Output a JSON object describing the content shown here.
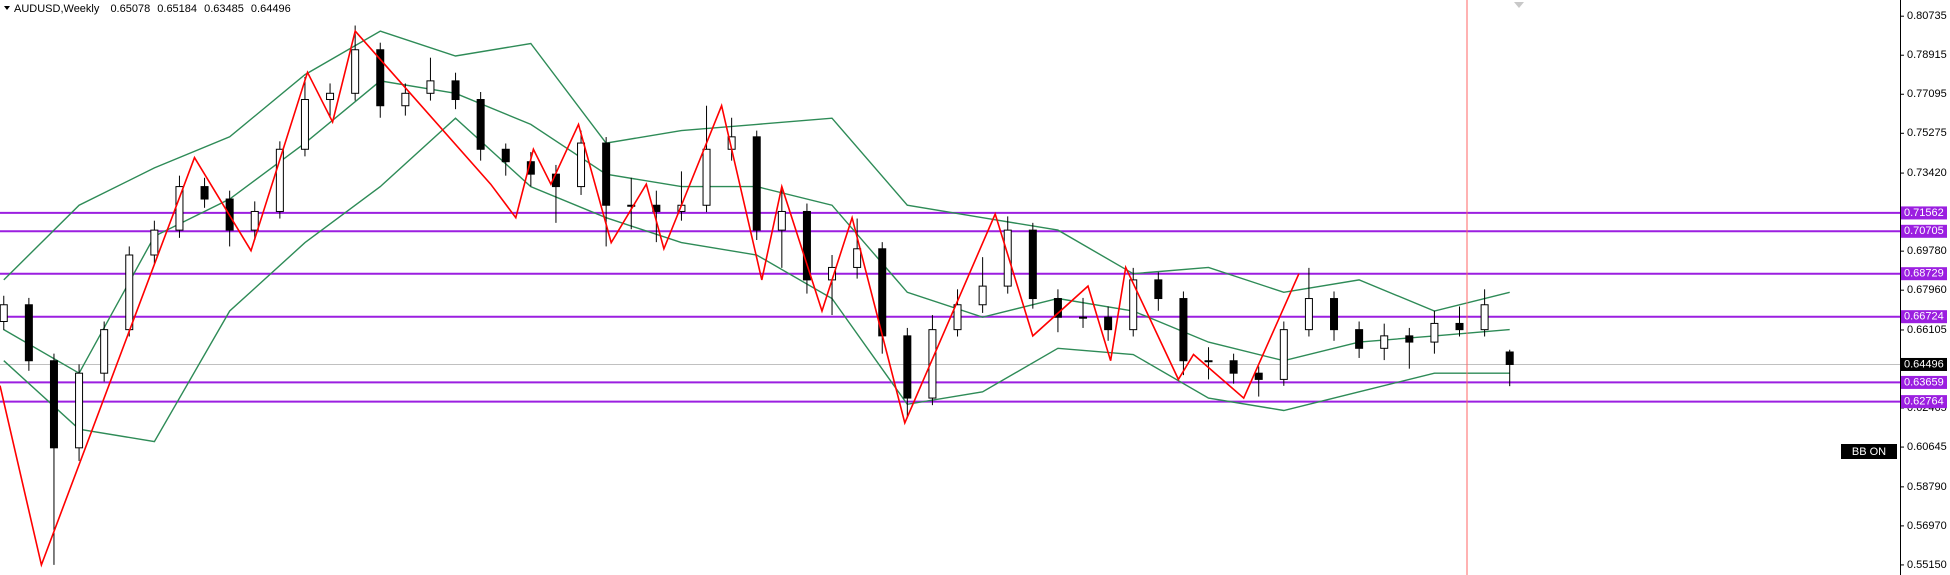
{
  "chart_data": {
    "type": "candlestick",
    "symbol": "AUDUSD,Weekly",
    "indicator_label": "BB ON",
    "xlim": [
      -0.15,
      75.55
    ],
    "ylim": [
      0.5468,
      0.8149
    ],
    "yticks": [
      0.80735,
      0.78915,
      0.77095,
      0.75275,
      {
        "value": 0.7342,
        "label": "0.73420"
      },
      {
        "value": 0.6978,
        "label": "0.69780"
      },
      {
        "value": 0.6796,
        "label": "0.67960"
      },
      0.66105,
      0.62465,
      0.60645,
      {
        "value": 0.5879,
        "label": "0.58790"
      },
      {
        "value": 0.5697,
        "label": "0.56970"
      },
      {
        "value": 0.5515,
        "label": "0.55150"
      }
    ],
    "x": [
      0,
      1,
      2,
      3,
      4,
      5,
      6,
      7,
      8,
      9,
      10,
      11,
      12,
      13,
      14,
      15,
      16,
      17,
      18,
      19,
      20,
      21,
      22,
      23,
      24,
      25,
      26,
      27,
      28,
      29,
      30,
      31,
      32,
      33,
      34,
      35,
      36,
      37,
      38,
      39,
      40,
      41,
      42,
      43,
      44,
      45,
      46,
      47,
      48,
      49,
      50,
      51,
      52,
      53,
      54,
      55,
      56,
      57,
      58,
      59,
      60
    ],
    "open": [
      0.665,
      0.6728,
      0.6467,
      0.6061,
      0.6409,
      0.6612,
      0.696,
      0.7076,
      0.7279,
      0.7221,
      0.7076,
      0.7163,
      0.7453,
      0.7685,
      0.7714,
      0.7917,
      0.7656,
      0.7714,
      0.7772,
      0.7685,
      0.7453,
      0.7395,
      0.7337,
      0.7279,
      0.7482,
      0.7192,
      0.7192,
      0.7163,
      0.7192,
      0.7453,
      0.7511,
      0.7076,
      0.7163,
      0.6844,
      0.6902,
      0.6989,
      0.6583,
      0.6293,
      0.6612,
      0.6728,
      0.6815,
      0.7076,
      0.6757,
      0.667,
      0.667,
      0.6612,
      0.6844,
      0.6757,
      0.6467,
      0.6467,
      0.6409,
      0.638,
      0.6612,
      0.6757,
      0.6612,
      0.6525,
      0.6583,
      0.6554,
      0.6641,
      0.6612,
      0.65078
    ],
    "high": [
      0.677,
      0.676,
      0.65,
      0.645,
      0.665,
      0.7,
      0.712,
      0.733,
      0.732,
      0.726,
      0.721,
      0.749,
      0.779,
      0.776,
      0.803,
      0.795,
      0.776,
      0.788,
      0.781,
      0.772,
      0.748,
      0.744,
      0.738,
      0.754,
      0.751,
      0.732,
      0.726,
      0.735,
      0.7656,
      0.76,
      0.754,
      0.727,
      0.72,
      0.696,
      0.713,
      0.702,
      0.662,
      0.668,
      0.68,
      0.695,
      0.714,
      0.711,
      0.68,
      0.676,
      0.672,
      0.69,
      0.688,
      0.679,
      0.653,
      0.65,
      0.644,
      0.665,
      0.69,
      0.679,
      0.665,
      0.664,
      0.662,
      0.67,
      0.672,
      0.68,
      0.65184
    ],
    "low": [
      0.661,
      0.642,
      0.5515,
      0.6,
      0.637,
      0.658,
      0.692,
      0.704,
      0.718,
      0.7,
      0.703,
      0.713,
      0.742,
      0.76,
      0.768,
      0.76,
      0.761,
      0.768,
      0.764,
      0.74,
      0.733,
      0.728,
      0.711,
      0.724,
      0.7,
      0.708,
      0.702,
      0.712,
      0.716,
      0.74,
      0.703,
      0.69,
      0.678,
      0.668,
      0.685,
      0.65,
      0.6205,
      0.626,
      0.658,
      0.669,
      0.678,
      0.671,
      0.66,
      0.662,
      0.656,
      0.658,
      0.67,
      0.64,
      0.638,
      0.636,
      0.63,
      0.635,
      0.658,
      0.656,
      0.648,
      0.647,
      0.643,
      0.65,
      0.658,
      0.658,
      0.63485
    ],
    "close": [
      0.6728,
      0.6467,
      0.6061,
      0.6409,
      0.6612,
      0.696,
      0.7076,
      0.7279,
      0.7221,
      0.7076,
      0.7163,
      0.7453,
      0.7685,
      0.7714,
      0.7917,
      0.7656,
      0.7714,
      0.7772,
      0.7685,
      0.7453,
      0.7395,
      0.7337,
      0.7279,
      0.7482,
      0.7192,
      0.7192,
      0.7163,
      0.7192,
      0.7453,
      0.7511,
      0.7076,
      0.7163,
      0.6844,
      0.6902,
      0.6989,
      0.6583,
      0.6293,
      0.6612,
      0.6728,
      0.6815,
      0.7076,
      0.6757,
      0.667,
      0.667,
      0.6612,
      0.6844,
      0.6757,
      0.6467,
      0.6467,
      0.6409,
      0.638,
      0.6612,
      0.6757,
      0.6612,
      0.6525,
      0.6583,
      0.6554,
      0.6641,
      0.6612,
      0.6728,
      0.64496
    ],
    "bands": {
      "color": "#2e8b57",
      "x": [
        0,
        3,
        6,
        9,
        12,
        15,
        18,
        21,
        24,
        27,
        30,
        33,
        36,
        39,
        42,
        45,
        48,
        51,
        54,
        57,
        60
      ],
      "upper": [
        0.6844,
        0.7192,
        0.7366,
        0.7511,
        0.7801,
        0.8004,
        0.7888,
        0.7946,
        0.7482,
        0.754,
        0.7569,
        0.7598,
        0.7192,
        0.7134,
        0.7076,
        0.6873,
        0.6902,
        0.6786,
        0.6844,
        0.6699,
        0.6786
      ],
      "middle": [
        0.6612,
        0.6409,
        0.7047,
        0.7221,
        0.7482,
        0.7772,
        0.7714,
        0.7569,
        0.7337,
        0.7279,
        0.7279,
        0.7192,
        0.6786,
        0.667,
        0.6757,
        0.6699,
        0.6554,
        0.6467,
        0.6554,
        0.6583,
        0.6612
      ],
      "lower": [
        0.6467,
        0.6148,
        0.609,
        0.6699,
        0.7018,
        0.7279,
        0.7598,
        0.7279,
        0.7134,
        0.7018,
        0.696,
        0.6757,
        0.6264,
        0.6322,
        0.6525,
        0.6496,
        0.6293,
        0.6235,
        0.6322,
        0.6409,
        0.6409
      ]
    },
    "zigzag": {
      "color": "#ff0000",
      "x": [
        -0.15,
        1.5,
        7.6,
        9.85,
        12.1,
        13.1,
        14,
        19.4,
        20.4,
        21.1,
        21.8,
        22.9,
        24.2,
        25.6,
        26.3,
        28.6,
        30.2,
        31,
        32.6,
        33.8,
        35.9,
        39.5,
        41,
        43.2,
        44.1,
        44.7,
        46.8,
        47.4,
        49.4,
        51.6
      ],
      "values": [
        0.6351,
        0.5515,
        0.7414,
        0.698,
        0.7812,
        0.758,
        0.8004,
        0.729,
        0.7134,
        0.7453,
        0.729,
        0.7569,
        0.7018,
        0.729,
        0.6989,
        0.7656,
        0.6844,
        0.7279,
        0.6699,
        0.7134,
        0.6177,
        0.7151,
        0.6583,
        0.6815,
        0.6467,
        0.6902,
        0.638,
        0.6496,
        0.6293,
        0.6873
      ]
    },
    "levels": [
      0.71562,
      0.70705,
      0.68729,
      0.66724,
      0.63659,
      0.62764
    ],
    "level_color": "#9b1fe0"
  }
}
